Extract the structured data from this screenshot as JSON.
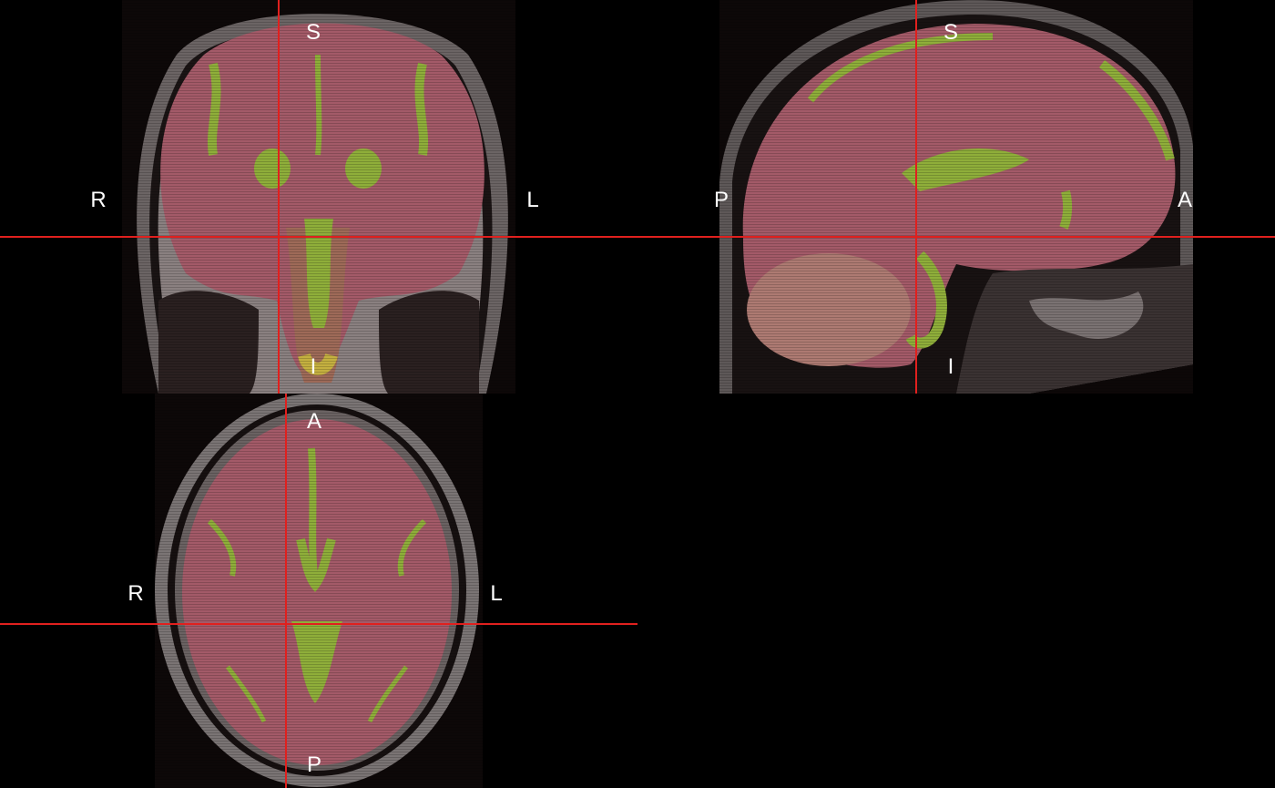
{
  "viewer": {
    "background_color": "#000000",
    "crosshair_color": "#e0201e",
    "overlay_color": "#c0506a",
    "label_color": "#ffffff"
  },
  "views": {
    "coronal": {
      "labels": {
        "top": "S",
        "bottom": "I",
        "left": "R",
        "right": "L"
      }
    },
    "sagittal": {
      "labels": {
        "top": "S",
        "bottom": "I",
        "left": "P",
        "right": "A"
      }
    },
    "axial": {
      "labels": {
        "top": "A",
        "bottom": "P",
        "left": "R",
        "right": "L"
      }
    }
  }
}
